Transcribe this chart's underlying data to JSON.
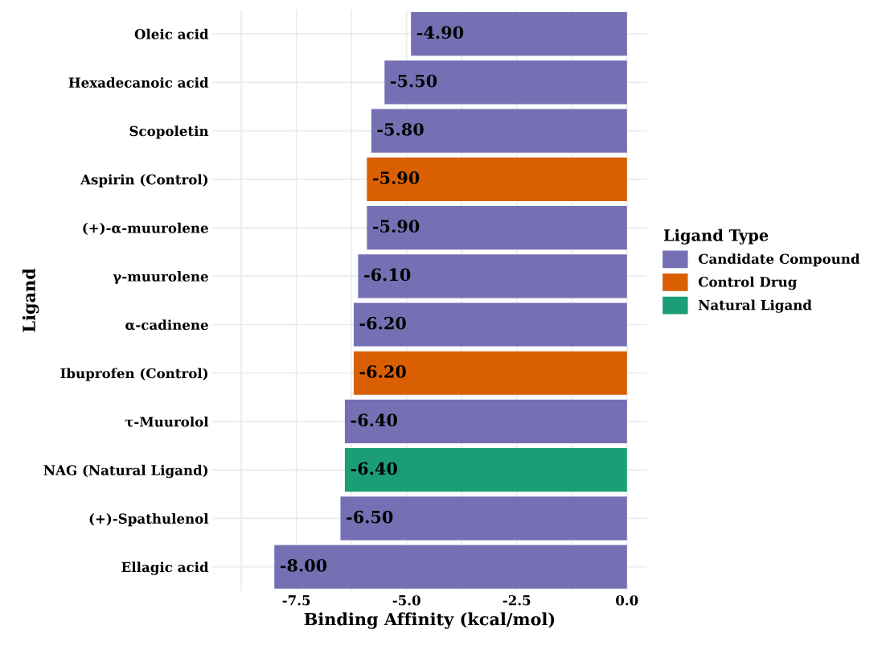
{
  "chart_data": {
    "type": "bar",
    "orientation": "horizontal",
    "xlabel": "Binding Affinity (kcal/mol)",
    "ylabel": "Ligand",
    "legend_title": "Ligand Type",
    "categories": [
      "Oleic acid",
      "Hexadecanoic acid",
      "Scopoletin",
      "Aspirin (Control)",
      "(+)-α-muurolene",
      "γ-muurolene",
      "α-cadinene",
      "Ibuprofen (Control)",
      "τ-Muurolol",
      "NAG (Natural Ligand)",
      "(+)-Spathulenol",
      "Ellagic acid"
    ],
    "series": [
      {
        "name": "Candidate Compound",
        "color": "#7570b3",
        "values": [
          -4.9,
          -5.5,
          -5.8,
          null,
          -5.9,
          -6.1,
          -6.2,
          null,
          -6.4,
          null,
          -6.5,
          -8.0
        ],
        "value_labels": [
          "-4.90",
          "-5.50",
          "-5.80",
          null,
          "-5.90",
          "-6.10",
          "-6.20",
          null,
          "-6.40",
          null,
          "-6.50",
          "-8.00"
        ]
      },
      {
        "name": "Control Drug",
        "color": "#d95f02",
        "values": [
          null,
          null,
          null,
          -5.9,
          null,
          null,
          null,
          -6.2,
          null,
          null,
          null,
          null
        ],
        "value_labels": [
          null,
          null,
          null,
          "-5.90",
          null,
          null,
          null,
          "-6.20",
          null,
          null,
          null,
          null
        ]
      },
      {
        "name": "Natural Ligand",
        "color": "#1b9e77",
        "values": [
          null,
          null,
          null,
          null,
          null,
          null,
          null,
          null,
          null,
          -6.4,
          null,
          null
        ],
        "value_labels": [
          null,
          null,
          null,
          null,
          null,
          null,
          null,
          null,
          null,
          "-6.40",
          null,
          null
        ]
      }
    ],
    "xlim": [
      -9.4,
      0.45
    ],
    "xticks": [
      {
        "value": -8.75,
        "label": null
      },
      {
        "value": -7.5,
        "label": "-7.5"
      },
      {
        "value": -6.25,
        "label": null
      },
      {
        "value": -5.0,
        "label": "-5.0"
      },
      {
        "value": -3.75,
        "label": null
      },
      {
        "value": -2.5,
        "label": "-2.5"
      },
      {
        "value": -1.25,
        "label": null
      },
      {
        "value": 0.0,
        "label": "0.0"
      }
    ],
    "grid": true,
    "legend": "right"
  }
}
